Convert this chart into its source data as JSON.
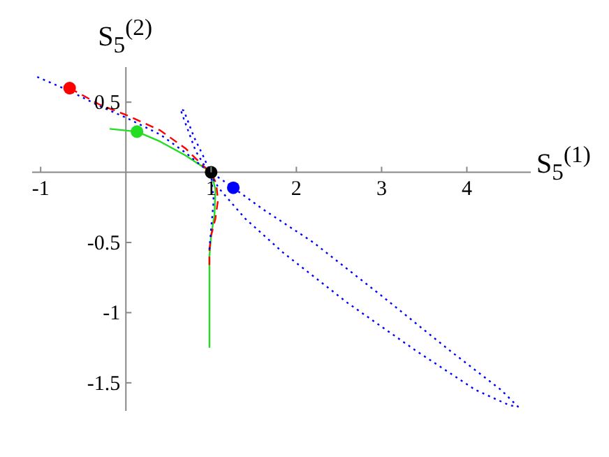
{
  "chart_data": {
    "type": "line",
    "xlabel": "S$_{5}$$^{(1)}$",
    "ylabel": "S$_{5}$$^{(2)}$",
    "xlim": [
      -1.1,
      4.75
    ],
    "ylim": [
      -1.7,
      0.75
    ],
    "xticks": [
      -1,
      1,
      2,
      3,
      4
    ],
    "yticks": [
      0.5,
      -0.5,
      -1,
      -1.5
    ],
    "series": [
      {
        "line_style": "solid",
        "color": "#22dd22",
        "x": [
          -0.19,
          0.13,
          0.4,
          0.7,
          0.9,
          1,
          1.05,
          1.04,
          1,
          0.98,
          0.98,
          0.98,
          0.98
        ],
        "values": [
          0.31,
          0.29,
          0.22,
          0.12,
          0.04,
          0,
          -0.12,
          -0.3,
          -0.45,
          -0.6,
          -0.8,
          -1,
          -1.25
        ]
      },
      {
        "line_style": "dashed",
        "color": "#ff0000",
        "x": [
          -0.66,
          -0.3,
          0,
          0.4,
          0.7,
          0.9,
          1,
          1.06,
          1.08,
          1.05,
          1,
          0.98,
          0.98
        ],
        "values": [
          0.6,
          0.48,
          0.41,
          0.3,
          0.17,
          0.05,
          0,
          -0.08,
          -0.2,
          -0.33,
          -0.45,
          -0.55,
          -0.66
        ]
      },
      {
        "line_style": "dotted",
        "color": "#0000ff",
        "x": [
          -1.04,
          -0.66,
          -0.3,
          0,
          0.4,
          0.7,
          0.9,
          1,
          1.26,
          1.6,
          2.2,
          3,
          3.8,
          4.4,
          4.6,
          4.5,
          4.1,
          3.4,
          2.6,
          1.84,
          1.4,
          1.1,
          0.95,
          0.82,
          0.68,
          0.64,
          0.68,
          0.8,
          0.92,
          1,
          1.03,
          1,
          0.98
        ],
        "values": [
          0.68,
          0.58,
          0.47,
          0.39,
          0.27,
          0.14,
          0.04,
          0,
          -0.11,
          -0.26,
          -0.5,
          -0.88,
          -1.27,
          -1.55,
          -1.67,
          -1.66,
          -1.55,
          -1.27,
          -0.93,
          -0.57,
          -0.33,
          -0.12,
          0.02,
          0.15,
          0.38,
          0.45,
          0.44,
          0.25,
          0.1,
          -0.02,
          -0.2,
          -0.4,
          -0.55
        ]
      },
      {
        "type": "scatter",
        "marker": "circle",
        "x": [
          -0.66,
          0.13,
          1,
          1.26
        ],
        "values": [
          0.6,
          0.29,
          0,
          -0.11
        ],
        "colors": [
          "#ff0000",
          "#22dd22",
          "#000000",
          "#0000ff"
        ]
      }
    ]
  }
}
